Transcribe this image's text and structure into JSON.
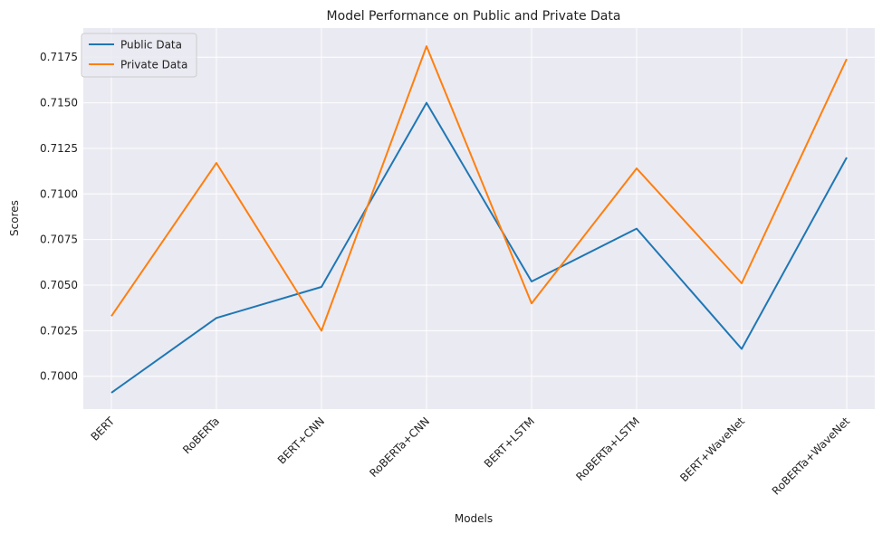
{
  "chart_data": {
    "type": "line",
    "title": "Model Performance on Public and Private Data",
    "xlabel": "Models",
    "ylabel": "Scores",
    "categories": [
      "BERT",
      "RoBERTa",
      "BERT+CNN",
      "RoBERTa+CNN",
      "BERT+LSTM",
      "RoBERTa+LSTM",
      "BERT+WaveNet",
      "RoBERTa+WaveNet"
    ],
    "series": [
      {
        "name": "Public Data",
        "color": "#1f77b4",
        "values": [
          0.6991,
          0.7032,
          0.7049,
          0.715,
          0.7052,
          0.7081,
          0.7015,
          0.712
        ]
      },
      {
        "name": "Private Data",
        "color": "#ff7f0e",
        "values": [
          0.7033,
          0.7117,
          0.7025,
          0.7181,
          0.704,
          0.7114,
          0.7051,
          0.7174
        ]
      }
    ],
    "ylim": [
      0.6982,
      0.7191
    ],
    "yticks": [
      "0.7000",
      "0.7025",
      "0.7050",
      "0.7075",
      "0.7100",
      "0.7125",
      "0.7150",
      "0.7175"
    ],
    "grid": true,
    "legend_position": "upper left",
    "background_color": "#eaeaf2",
    "grid_color": "#ffffff"
  }
}
